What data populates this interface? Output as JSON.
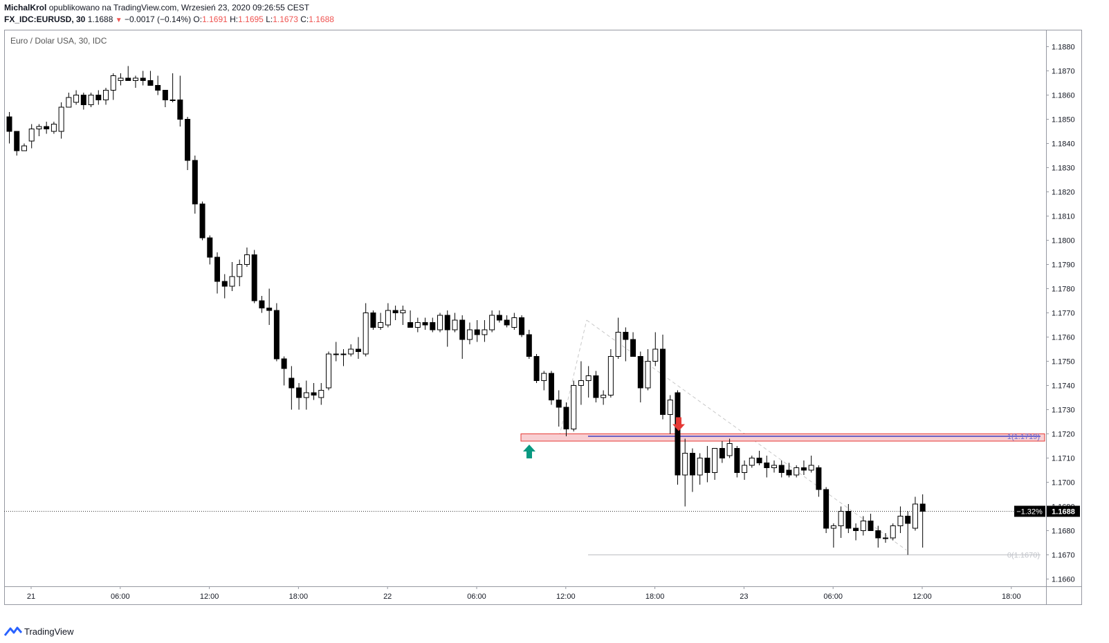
{
  "header": {
    "author": "MichalKrol",
    "published_text": "opublikowano na TradingView.com, Wrzesień 23, 2020 09:26:55 CEST",
    "symbol": "FX_IDC:EURUSD, 30",
    "last": "1.1688",
    "change": "−0.0017 (−0.14%)",
    "o_label": "O:",
    "o_value": "1.1691",
    "h_label": "H:",
    "h_value": "1.1695",
    "l_label": "L:",
    "l_value": "1.1673",
    "c_label": "C:",
    "c_value": "1.1688"
  },
  "footer": {
    "brand": "TradingView"
  },
  "chart_data": {
    "type": "candlestick",
    "title": "Euro / Dolar USA, 30, IDC",
    "y_ticks": [
      1.166,
      1.167,
      1.168,
      1.169,
      1.17,
      1.171,
      1.172,
      1.173,
      1.174,
      1.175,
      1.176,
      1.177,
      1.178,
      1.179,
      1.18,
      1.181,
      1.182,
      1.183,
      1.184,
      1.185,
      1.186,
      1.187,
      1.188
    ],
    "ylim": [
      1.1657,
      1.1887
    ],
    "x_ticks": [
      "21",
      "06:00",
      "12:00",
      "18:00",
      "22",
      "06:00",
      "12:00",
      "18:00",
      "23",
      "06:00",
      "12:00",
      "18:00"
    ],
    "price_label": "1.1688",
    "change_label": "−1.32%",
    "fib_top_label": "1(1.1719)",
    "fib_bottom_label": "0(1.1670)",
    "colors": {
      "up": "#ffffff",
      "down": "#000000",
      "wick": "#000000",
      "zone": "#f8cfd2",
      "zone_border": "#e53935",
      "line": "#3f3fbf",
      "arrow_down": "#e53935",
      "arrow_up": "#089981"
    },
    "candles": [
      {
        "o": 1.1851,
        "h": 1.1853,
        "l": 1.184,
        "c": 1.1845
      },
      {
        "o": 1.1845,
        "h": 1.1845,
        "l": 1.1835,
        "c": 1.1837
      },
      {
        "o": 1.1837,
        "h": 1.184,
        "l": 1.1837,
        "c": 1.1839
      },
      {
        "o": 1.1841,
        "h": 1.1848,
        "l": 1.1838,
        "c": 1.1846
      },
      {
        "o": 1.1846,
        "h": 1.1848,
        "l": 1.1843,
        "c": 1.1847
      },
      {
        "o": 1.1847,
        "h": 1.1849,
        "l": 1.1844,
        "c": 1.1846
      },
      {
        "o": 1.1845,
        "h": 1.1849,
        "l": 1.1844,
        "c": 1.1848
      },
      {
        "o": 1.1845,
        "h": 1.1857,
        "l": 1.1842,
        "c": 1.1855
      },
      {
        "o": 1.1855,
        "h": 1.1861,
        "l": 1.1855,
        "c": 1.1859
      },
      {
        "o": 1.1857,
        "h": 1.1862,
        "l": 1.1856,
        "c": 1.186
      },
      {
        "o": 1.186,
        "h": 1.1861,
        "l": 1.1854,
        "c": 1.1856
      },
      {
        "o": 1.1856,
        "h": 1.1861,
        "l": 1.1855,
        "c": 1.186
      },
      {
        "o": 1.186,
        "h": 1.1862,
        "l": 1.1856,
        "c": 1.1858
      },
      {
        "o": 1.1858,
        "h": 1.1863,
        "l": 1.1856,
        "c": 1.1862
      },
      {
        "o": 1.1862,
        "h": 1.1869,
        "l": 1.1858,
        "c": 1.1868
      },
      {
        "o": 1.1866,
        "h": 1.1869,
        "l": 1.1864,
        "c": 1.1867
      },
      {
        "o": 1.1867,
        "h": 1.1872,
        "l": 1.1866,
        "c": 1.1866
      },
      {
        "o": 1.1866,
        "h": 1.1868,
        "l": 1.1863,
        "c": 1.1867
      },
      {
        "o": 1.1867,
        "h": 1.187,
        "l": 1.1864,
        "c": 1.1866
      },
      {
        "o": 1.1866,
        "h": 1.187,
        "l": 1.1864,
        "c": 1.1864
      },
      {
        "o": 1.1864,
        "h": 1.1868,
        "l": 1.186,
        "c": 1.1862
      },
      {
        "o": 1.1862,
        "h": 1.1862,
        "l": 1.1855,
        "c": 1.1858
      },
      {
        "o": 1.1858,
        "h": 1.1869,
        "l": 1.1857,
        "c": 1.1858
      },
      {
        "o": 1.1858,
        "h": 1.1868,
        "l": 1.1847,
        "c": 1.185
      },
      {
        "o": 1.185,
        "h": 1.1851,
        "l": 1.1829,
        "c": 1.1833
      },
      {
        "o": 1.1833,
        "h": 1.1835,
        "l": 1.1811,
        "c": 1.1815
      },
      {
        "o": 1.1815,
        "h": 1.1816,
        "l": 1.18,
        "c": 1.1801
      },
      {
        "o": 1.1801,
        "h": 1.1802,
        "l": 1.179,
        "c": 1.1793
      },
      {
        "o": 1.1793,
        "h": 1.1795,
        "l": 1.1778,
        "c": 1.1783
      },
      {
        "o": 1.1783,
        "h": 1.1786,
        "l": 1.1776,
        "c": 1.1781
      },
      {
        "o": 1.1781,
        "h": 1.1791,
        "l": 1.1779,
        "c": 1.1785
      },
      {
        "o": 1.1785,
        "h": 1.1792,
        "l": 1.1781,
        "c": 1.179
      },
      {
        "o": 1.179,
        "h": 1.1797,
        "l": 1.1789,
        "c": 1.1794
      },
      {
        "o": 1.1794,
        "h": 1.1796,
        "l": 1.1774,
        "c": 1.1775
      },
      {
        "o": 1.1775,
        "h": 1.1777,
        "l": 1.177,
        "c": 1.1772
      },
      {
        "o": 1.1772,
        "h": 1.178,
        "l": 1.1765,
        "c": 1.1771
      },
      {
        "o": 1.1771,
        "h": 1.1774,
        "l": 1.175,
        "c": 1.1751
      },
      {
        "o": 1.1751,
        "h": 1.1752,
        "l": 1.174,
        "c": 1.1747
      },
      {
        "o": 1.1743,
        "h": 1.1748,
        "l": 1.173,
        "c": 1.1739
      },
      {
        "o": 1.1739,
        "h": 1.1741,
        "l": 1.173,
        "c": 1.1735
      },
      {
        "o": 1.1735,
        "h": 1.1742,
        "l": 1.173,
        "c": 1.1737
      },
      {
        "o": 1.1737,
        "h": 1.1741,
        "l": 1.1734,
        "c": 1.1736
      },
      {
        "o": 1.1735,
        "h": 1.1741,
        "l": 1.1732,
        "c": 1.1738
      },
      {
        "o": 1.1739,
        "h": 1.1754,
        "l": 1.1738,
        "c": 1.1753
      },
      {
        "o": 1.1753,
        "h": 1.1758,
        "l": 1.175,
        "c": 1.1753
      },
      {
        "o": 1.1753,
        "h": 1.1755,
        "l": 1.1748,
        "c": 1.1753
      },
      {
        "o": 1.1753,
        "h": 1.1757,
        "l": 1.1752,
        "c": 1.1755
      },
      {
        "o": 1.1755,
        "h": 1.176,
        "l": 1.1751,
        "c": 1.1754
      },
      {
        "o": 1.1753,
        "h": 1.1774,
        "l": 1.1752,
        "c": 1.177
      },
      {
        "o": 1.177,
        "h": 1.1771,
        "l": 1.1763,
        "c": 1.1764
      },
      {
        "o": 1.1764,
        "h": 1.177,
        "l": 1.1763,
        "c": 1.1766
      },
      {
        "o": 1.1765,
        "h": 1.1774,
        "l": 1.1764,
        "c": 1.1771
      },
      {
        "o": 1.1771,
        "h": 1.1773,
        "l": 1.1767,
        "c": 1.177
      },
      {
        "o": 1.177,
        "h": 1.1773,
        "l": 1.1765,
        "c": 1.1771
      },
      {
        "o": 1.1766,
        "h": 1.1771,
        "l": 1.1764,
        "c": 1.1764
      },
      {
        "o": 1.1764,
        "h": 1.1768,
        "l": 1.1762,
        "c": 1.1766
      },
      {
        "o": 1.1766,
        "h": 1.1768,
        "l": 1.1763,
        "c": 1.1765
      },
      {
        "o": 1.1766,
        "h": 1.1768,
        "l": 1.1762,
        "c": 1.1763
      },
      {
        "o": 1.1763,
        "h": 1.177,
        "l": 1.1762,
        "c": 1.1769
      },
      {
        "o": 1.1769,
        "h": 1.1771,
        "l": 1.1756,
        "c": 1.1763
      },
      {
        "o": 1.1763,
        "h": 1.177,
        "l": 1.1762,
        "c": 1.1767
      },
      {
        "o": 1.1767,
        "h": 1.1769,
        "l": 1.1751,
        "c": 1.1759
      },
      {
        "o": 1.1759,
        "h": 1.1766,
        "l": 1.1757,
        "c": 1.1763
      },
      {
        "o": 1.1763,
        "h": 1.1767,
        "l": 1.1758,
        "c": 1.1761
      },
      {
        "o": 1.1761,
        "h": 1.1767,
        "l": 1.1758,
        "c": 1.1763
      },
      {
        "o": 1.1763,
        "h": 1.1771,
        "l": 1.1762,
        "c": 1.1769
      },
      {
        "o": 1.1769,
        "h": 1.1771,
        "l": 1.1766,
        "c": 1.1767
      },
      {
        "o": 1.1767,
        "h": 1.1769,
        "l": 1.1764,
        "c": 1.1765
      },
      {
        "o": 1.1764,
        "h": 1.177,
        "l": 1.1763,
        "c": 1.1768
      },
      {
        "o": 1.1768,
        "h": 1.1769,
        "l": 1.176,
        "c": 1.1761
      },
      {
        "o": 1.1761,
        "h": 1.1763,
        "l": 1.1751,
        "c": 1.1752
      },
      {
        "o": 1.1752,
        "h": 1.1753,
        "l": 1.1741,
        "c": 1.1742
      },
      {
        "o": 1.1742,
        "h": 1.1746,
        "l": 1.1738,
        "c": 1.1745
      },
      {
        "o": 1.1745,
        "h": 1.1746,
        "l": 1.1732,
        "c": 1.1734
      },
      {
        "o": 1.1734,
        "h": 1.1738,
        "l": 1.1723,
        "c": 1.1731
      },
      {
        "o": 1.1731,
        "h": 1.1733,
        "l": 1.1719,
        "c": 1.1722
      },
      {
        "o": 1.1722,
        "h": 1.1742,
        "l": 1.1721,
        "c": 1.174
      },
      {
        "o": 1.174,
        "h": 1.175,
        "l": 1.1732,
        "c": 1.1742
      },
      {
        "o": 1.1742,
        "h": 1.1748,
        "l": 1.1735,
        "c": 1.1744
      },
      {
        "o": 1.1744,
        "h": 1.1746,
        "l": 1.1733,
        "c": 1.1735
      },
      {
        "o": 1.1735,
        "h": 1.1738,
        "l": 1.1732,
        "c": 1.1736
      },
      {
        "o": 1.1736,
        "h": 1.1755,
        "l": 1.1735,
        "c": 1.1752
      },
      {
        "o": 1.1752,
        "h": 1.1768,
        "l": 1.1751,
        "c": 1.1762
      },
      {
        "o": 1.1762,
        "h": 1.1764,
        "l": 1.175,
        "c": 1.1759
      },
      {
        "o": 1.1759,
        "h": 1.1762,
        "l": 1.1752,
        "c": 1.1752
      },
      {
        "o": 1.1752,
        "h": 1.1754,
        "l": 1.1733,
        "c": 1.1739
      },
      {
        "o": 1.1739,
        "h": 1.1755,
        "l": 1.1738,
        "c": 1.175
      },
      {
        "o": 1.175,
        "h": 1.1762,
        "l": 1.1748,
        "c": 1.1755
      },
      {
        "o": 1.1755,
        "h": 1.1761,
        "l": 1.1726,
        "c": 1.1728
      },
      {
        "o": 1.1728,
        "h": 1.1736,
        "l": 1.172,
        "c": 1.1734
      },
      {
        "o": 1.1737,
        "h": 1.1738,
        "l": 1.1699,
        "c": 1.1703
      },
      {
        "o": 1.1703,
        "h": 1.1718,
        "l": 1.169,
        "c": 1.1712
      },
      {
        "o": 1.1712,
        "h": 1.1714,
        "l": 1.1696,
        "c": 1.1703
      },
      {
        "o": 1.1703,
        "h": 1.1712,
        "l": 1.1699,
        "c": 1.171
      },
      {
        "o": 1.171,
        "h": 1.1715,
        "l": 1.17,
        "c": 1.1704
      },
      {
        "o": 1.1704,
        "h": 1.1714,
        "l": 1.1701,
        "c": 1.1714
      },
      {
        "o": 1.1714,
        "h": 1.1717,
        "l": 1.1708,
        "c": 1.171
      },
      {
        "o": 1.1711,
        "h": 1.1718,
        "l": 1.171,
        "c": 1.1716
      },
      {
        "o": 1.1714,
        "h": 1.1715,
        "l": 1.1702,
        "c": 1.1704
      },
      {
        "o": 1.1704,
        "h": 1.1709,
        "l": 1.1701,
        "c": 1.1707
      },
      {
        "o": 1.1707,
        "h": 1.1711,
        "l": 1.1706,
        "c": 1.171
      },
      {
        "o": 1.171,
        "h": 1.1713,
        "l": 1.1707,
        "c": 1.1708
      },
      {
        "o": 1.1708,
        "h": 1.1711,
        "l": 1.1702,
        "c": 1.1706
      },
      {
        "o": 1.1706,
        "h": 1.1709,
        "l": 1.1704,
        "c": 1.1707
      },
      {
        "o": 1.1707,
        "h": 1.1709,
        "l": 1.1702,
        "c": 1.1704
      },
      {
        "o": 1.1705,
        "h": 1.1708,
        "l": 1.1702,
        "c": 1.1703
      },
      {
        "o": 1.1703,
        "h": 1.1707,
        "l": 1.1702,
        "c": 1.1706
      },
      {
        "o": 1.1706,
        "h": 1.1709,
        "l": 1.1703,
        "c": 1.1705
      },
      {
        "o": 1.1705,
        "h": 1.1711,
        "l": 1.1704,
        "c": 1.1707
      },
      {
        "o": 1.1706,
        "h": 1.1707,
        "l": 1.1694,
        "c": 1.1697
      },
      {
        "o": 1.1697,
        "h": 1.1698,
        "l": 1.1679,
        "c": 1.1681
      },
      {
        "o": 1.1681,
        "h": 1.1683,
        "l": 1.1673,
        "c": 1.1682
      },
      {
        "o": 1.1682,
        "h": 1.169,
        "l": 1.1677,
        "c": 1.1688
      },
      {
        "o": 1.1688,
        "h": 1.1691,
        "l": 1.1679,
        "c": 1.1681
      },
      {
        "o": 1.1681,
        "h": 1.1683,
        "l": 1.1676,
        "c": 1.168
      },
      {
        "o": 1.168,
        "h": 1.1686,
        "l": 1.1678,
        "c": 1.1684
      },
      {
        "o": 1.1684,
        "h": 1.1687,
        "l": 1.168,
        "c": 1.168
      },
      {
        "o": 1.168,
        "h": 1.1682,
        "l": 1.1673,
        "c": 1.1677
      },
      {
        "o": 1.1677,
        "h": 1.1679,
        "l": 1.1675,
        "c": 1.1677
      },
      {
        "o": 1.1677,
        "h": 1.1683,
        "l": 1.1676,
        "c": 1.1682
      },
      {
        "o": 1.1682,
        "h": 1.169,
        "l": 1.1679,
        "c": 1.1686
      },
      {
        "o": 1.1686,
        "h": 1.1688,
        "l": 1.167,
        "c": 1.1683
      },
      {
        "o": 1.1681,
        "h": 1.1694,
        "l": 1.168,
        "c": 1.1691
      },
      {
        "o": 1.1691,
        "h": 1.1695,
        "l": 1.1673,
        "c": 1.1688
      }
    ]
  }
}
